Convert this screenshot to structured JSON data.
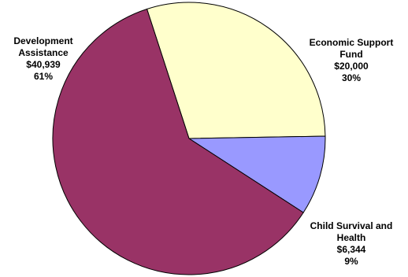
{
  "chart_data": {
    "type": "pie",
    "slices": [
      {
        "label_lines": [
          "Economic Support",
          "Fund",
          "$20,000",
          "30%"
        ],
        "name": "Economic Support Fund",
        "value": 20000,
        "percent": 30,
        "color": "#FFFFCC"
      },
      {
        "label_lines": [
          "Child Survival and",
          "Health",
          "$6,344",
          "9%"
        ],
        "name": "Child Survival and Health",
        "value": 6344,
        "percent": 9,
        "color": "#9999FF"
      },
      {
        "label_lines": [
          "Development",
          "Assistance",
          "$40,939",
          "61%"
        ],
        "name": "Development Assistance",
        "value": 40939,
        "percent": 61,
        "color": "#993366"
      }
    ]
  }
}
